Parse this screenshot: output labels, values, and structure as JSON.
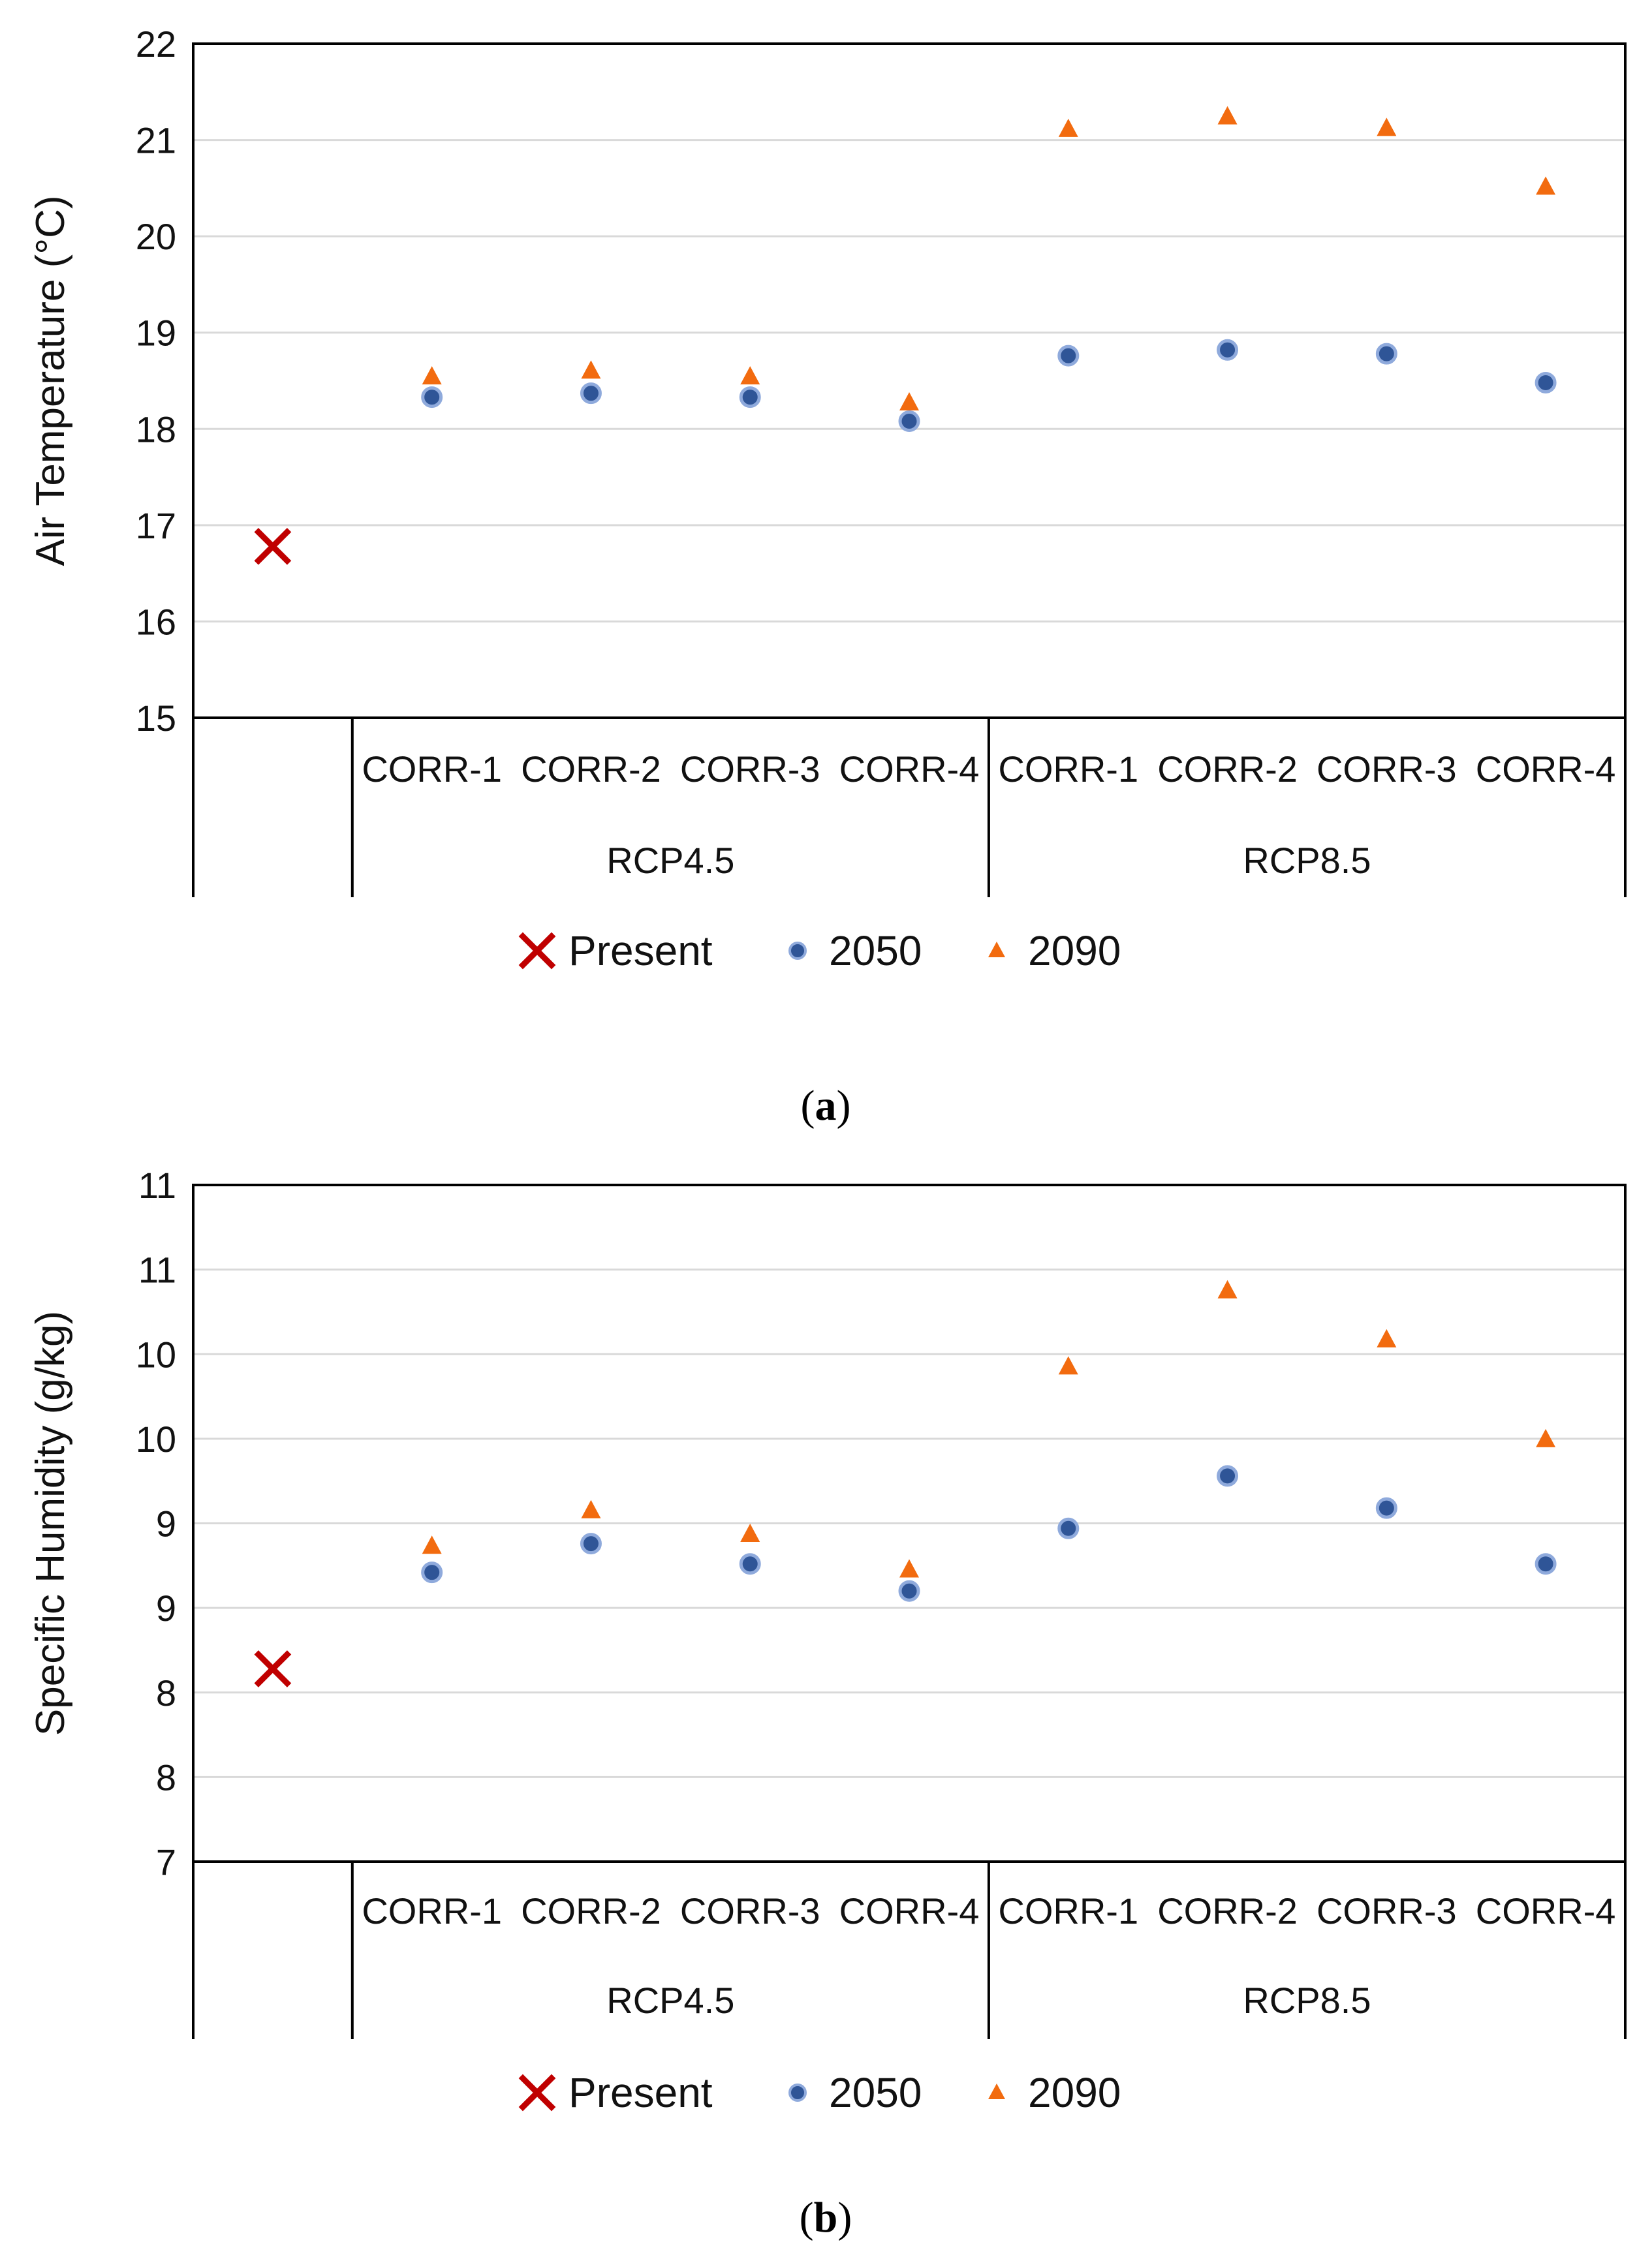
{
  "chart_data": [
    {
      "type": "scatter",
      "panel_label": "a",
      "ylabel": "Air Temperature (°C)",
      "ylim": [
        15,
        22
      ],
      "yticks": [
        "15",
        "16",
        "17",
        "18",
        "19",
        "20",
        "21",
        "22"
      ],
      "grid": true,
      "categories": [
        "",
        "CORR-1",
        "CORR-2",
        "CORR-3",
        "CORR-4",
        "CORR-1",
        "CORR-2",
        "CORR-3",
        "CORR-4"
      ],
      "groups": [
        {
          "label": "RCP4.5",
          "from": 1,
          "to": 4
        },
        {
          "label": "RCP8.5",
          "from": 5,
          "to": 8
        }
      ],
      "series": [
        {
          "name": "Present",
          "marker": "x",
          "color": "#C00000",
          "points": [
            {
              "i": 0,
              "y": 16.78
            }
          ]
        },
        {
          "name": "2050",
          "marker": "circle",
          "color": "#2F5597",
          "points": [
            {
              "i": 1,
              "y": 18.33
            },
            {
              "i": 2,
              "y": 18.37
            },
            {
              "i": 3,
              "y": 18.33
            },
            {
              "i": 4,
              "y": 18.08
            },
            {
              "i": 5,
              "y": 18.76
            },
            {
              "i": 6,
              "y": 18.82
            },
            {
              "i": 7,
              "y": 18.78
            },
            {
              "i": 8,
              "y": 18.48
            }
          ]
        },
        {
          "name": "2090",
          "marker": "triangle",
          "color": "#F26B0F",
          "points": [
            {
              "i": 1,
              "y": 18.55
            },
            {
              "i": 2,
              "y": 18.61
            },
            {
              "i": 3,
              "y": 18.55
            },
            {
              "i": 4,
              "y": 18.28
            },
            {
              "i": 5,
              "y": 21.12
            },
            {
              "i": 6,
              "y": 21.25
            },
            {
              "i": 7,
              "y": 21.13
            },
            {
              "i": 8,
              "y": 20.52
            }
          ]
        }
      ],
      "legend": [
        "Present",
        "2050",
        "2090"
      ],
      "legend_position": "bottom"
    },
    {
      "type": "scatter",
      "panel_label": "b",
      "ylabel": "Specific Humidity (g/kg)",
      "ylim": [
        7,
        11
      ],
      "yticks": [
        "7",
        "8",
        "8",
        "9",
        "9",
        "10",
        "10",
        "11",
        "11"
      ],
      "grid": true,
      "categories": [
        "",
        "CORR-1",
        "CORR-2",
        "CORR-3",
        "CORR-4",
        "CORR-1",
        "CORR-2",
        "CORR-3",
        "CORR-4"
      ],
      "groups": [
        {
          "label": "RCP4.5",
          "from": 1,
          "to": 4
        },
        {
          "label": "RCP8.5",
          "from": 5,
          "to": 8
        }
      ],
      "series": [
        {
          "name": "Present",
          "marker": "x",
          "color": "#C00000",
          "points": [
            {
              "i": 0,
              "y": 8.14
            }
          ]
        },
        {
          "name": "2050",
          "marker": "circle",
          "color": "#2F5597",
          "points": [
            {
              "i": 1,
              "y": 8.71
            },
            {
              "i": 2,
              "y": 8.88
            },
            {
              "i": 3,
              "y": 8.76
            },
            {
              "i": 4,
              "y": 8.6
            },
            {
              "i": 5,
              "y": 8.97
            },
            {
              "i": 6,
              "y": 9.28
            },
            {
              "i": 7,
              "y": 9.09
            },
            {
              "i": 8,
              "y": 8.76
            }
          ]
        },
        {
          "name": "2090",
          "marker": "triangle",
          "color": "#F26B0F",
          "points": [
            {
              "i": 1,
              "y": 8.87
            },
            {
              "i": 2,
              "y": 9.08
            },
            {
              "i": 3,
              "y": 8.94
            },
            {
              "i": 4,
              "y": 8.73
            },
            {
              "i": 5,
              "y": 9.93
            },
            {
              "i": 6,
              "y": 10.38
            },
            {
              "i": 7,
              "y": 10.09
            },
            {
              "i": 8,
              "y": 9.5
            }
          ]
        }
      ],
      "legend": [
        "Present",
        "2050",
        "2090"
      ],
      "legend_position": "bottom"
    }
  ],
  "captions": [
    {
      "open": "(",
      "label": "a",
      "close": ")"
    },
    {
      "open": "(",
      "label": "b",
      "close": ")"
    }
  ]
}
